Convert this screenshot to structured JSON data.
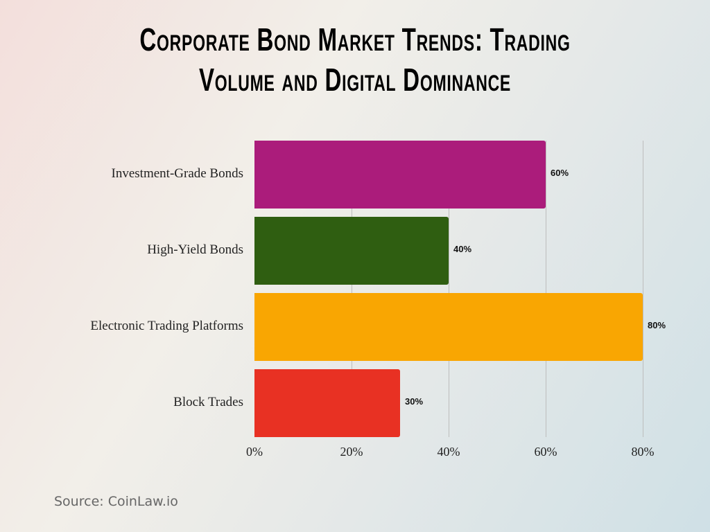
{
  "chart_data": {
    "type": "bar",
    "orientation": "horizontal",
    "title": "Corporate Bond Market Trends: Trading Volume and Digital Dominance",
    "title_lines": [
      "Corporate Bond Market Trends: Trading",
      "Volume and Digital Dominance"
    ],
    "categories": [
      "Investment-Grade Bonds",
      "High-Yield Bonds",
      "Electronic Trading Platforms",
      "Block Trades"
    ],
    "values": [
      60,
      40,
      80,
      30
    ],
    "value_labels": [
      "60%",
      "40%",
      "80%",
      "30%"
    ],
    "colors": [
      "#ab1c7b",
      "#2f5e11",
      "#f9a602",
      "#e83123"
    ],
    "xlim": [
      0,
      80
    ],
    "xticks": [
      0,
      20,
      40,
      60,
      80
    ],
    "xtick_labels": [
      "0%",
      "20%",
      "40%",
      "60%",
      "80%"
    ],
    "xlabel": "",
    "ylabel": "",
    "grid": "vertical"
  },
  "source": "Source: CoinLaw.io"
}
